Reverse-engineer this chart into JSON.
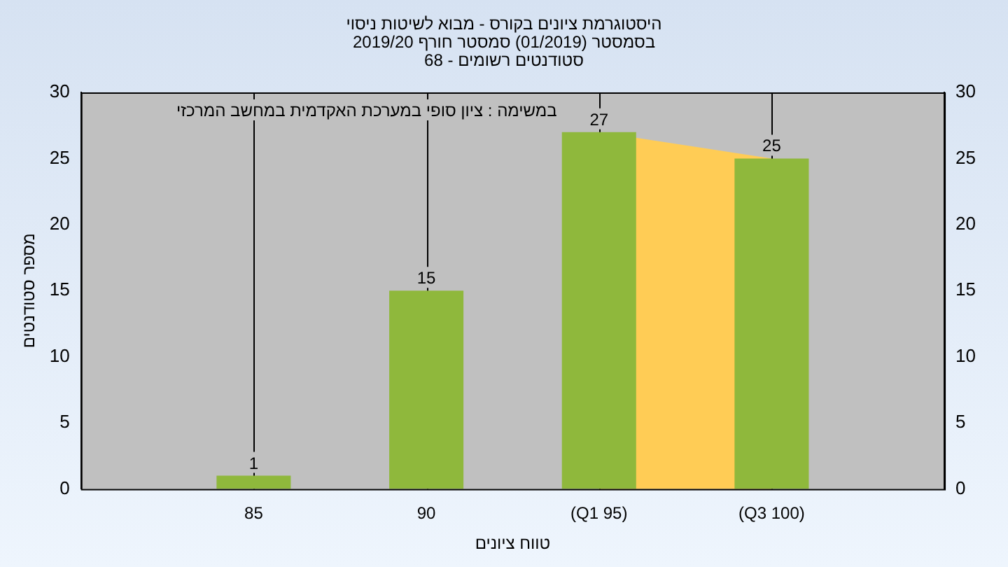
{
  "chart_data": {
    "type": "bar",
    "title": "היסטוגרמת ציונים בקורס - מבוא לשיטות ניסוי",
    "subtitle": "בסמסטר (01/2019) סמסטר חורף 2019/20\nסטודנטים רשומים - 68",
    "xlabel": "טווח ציונים",
    "ylabel": "מספר סטודנטים",
    "categories": [
      "85",
      "90",
      "(Q1 95)",
      "(Q3 100)"
    ],
    "values": [
      1,
      15,
      27,
      25
    ],
    "color": "#8fb83c",
    "ylim": [
      0,
      30
    ],
    "yticks": [
      0,
      5,
      10,
      15,
      20,
      25,
      30
    ],
    "y2lim": [
      0,
      30
    ],
    "y2ticks": [
      0,
      5,
      10,
      15,
      20,
      25,
      30
    ],
    "bands": [
      {
        "axis": "x",
        "from": "(Q1 95)",
        "to": "(Q3 100)",
        "color": "#ffcc55"
      }
    ],
    "annotations": [
      "במשימה : ציון סופי במערכת האקדמית במחשב המרכזי"
    ],
    "data_labels": true,
    "grid": "x",
    "legend": false
  }
}
